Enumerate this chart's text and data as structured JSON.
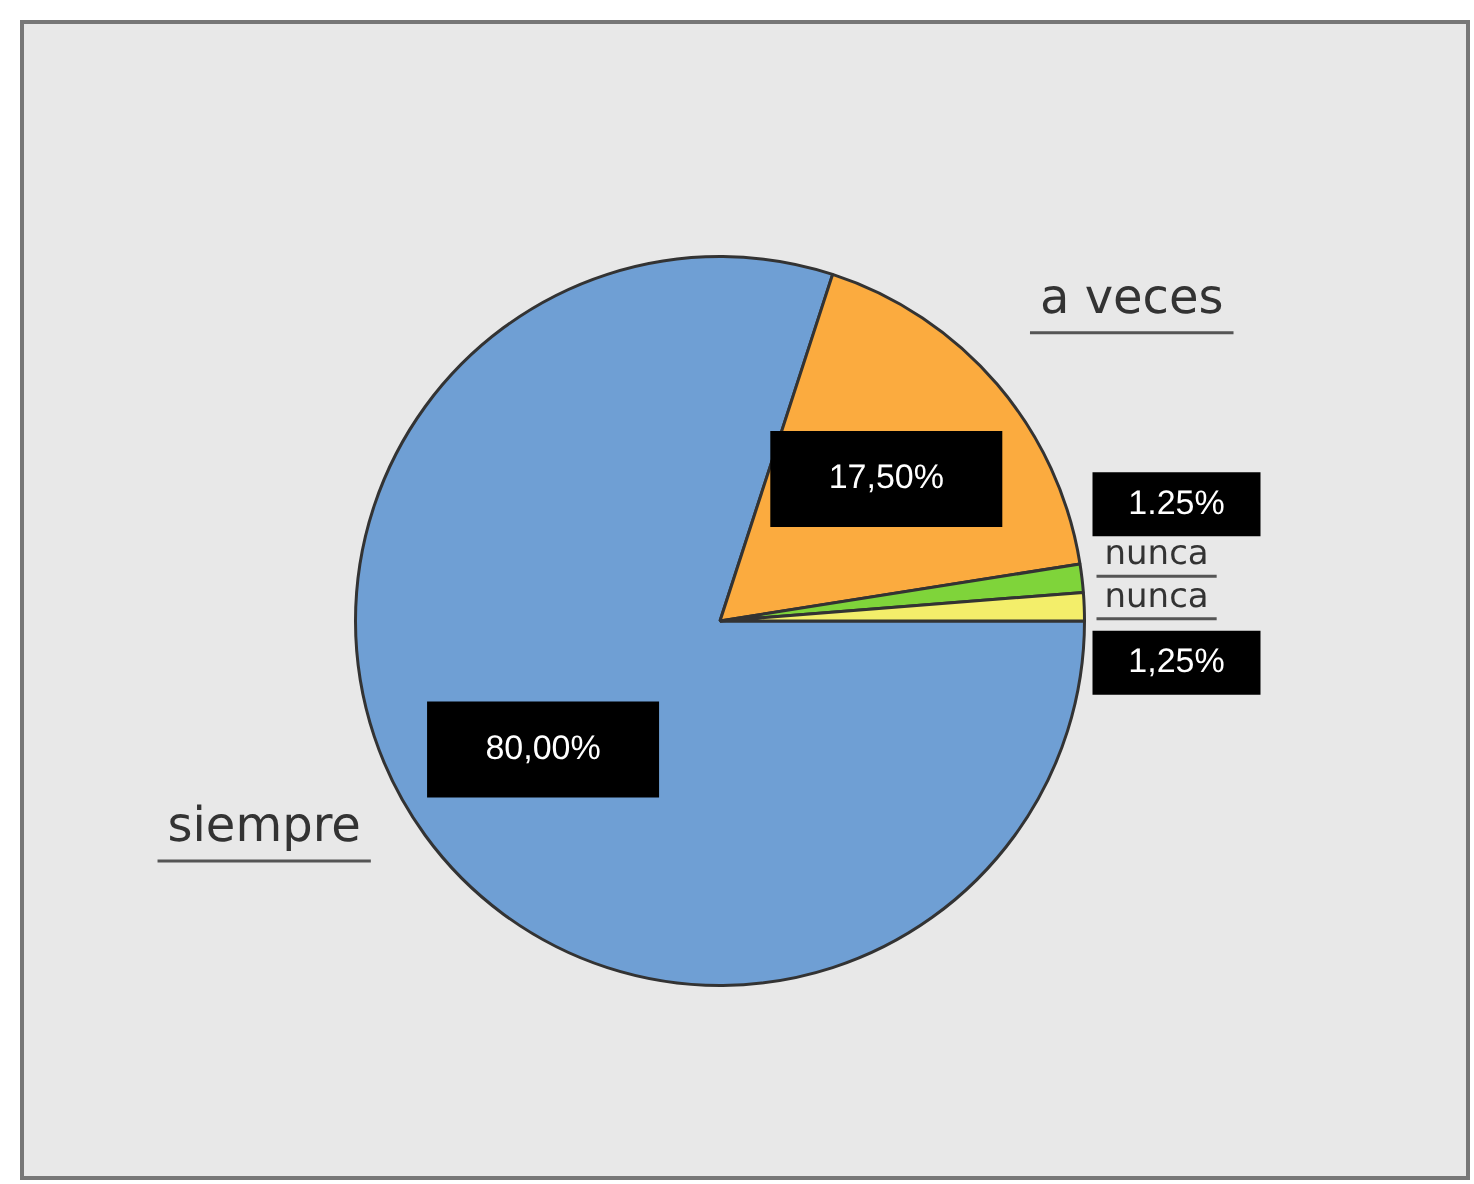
{
  "chart_data": {
    "type": "pie",
    "categories": [
      "siempre",
      "a veces",
      "nunca",
      "nunca"
    ],
    "values": [
      80,
      17.5,
      1.25,
      1.25
    ],
    "value_labels": [
      "80,00%",
      "17,50%",
      "1.25%",
      "1,25%"
    ],
    "colors": [
      "#6f9fd4",
      "#fbab3f",
      "#7fd43a",
      "#f3ee6a"
    ],
    "legend": false
  }
}
